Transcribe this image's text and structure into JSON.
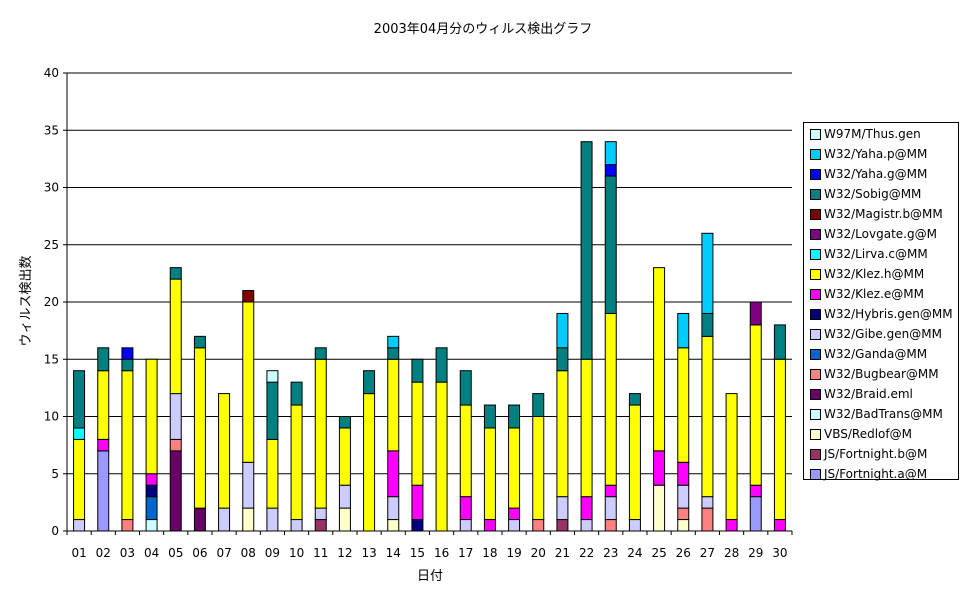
{
  "chart_data": {
    "type": "bar",
    "stacked": true,
    "title": "2003年04月分のウィルス検出グラフ",
    "xlabel": "日付",
    "ylabel": "ウィルス検出数",
    "ylim": [
      0,
      40
    ],
    "yticks": [
      0,
      5,
      10,
      15,
      20,
      25,
      30,
      35,
      40
    ],
    "grid": "horizontal",
    "legend_position": "right",
    "categories": [
      "01",
      "02",
      "03",
      "04",
      "05",
      "06",
      "07",
      "08",
      "09",
      "10",
      "11",
      "12",
      "13",
      "14",
      "15",
      "16",
      "17",
      "18",
      "19",
      "20",
      "21",
      "22",
      "23",
      "24",
      "25",
      "26",
      "27",
      "28",
      "29",
      "30"
    ],
    "series": [
      {
        "name": "JS/Fortnight.a@M",
        "color": "#9999ff",
        "values": [
          0,
          7,
          0,
          0,
          0,
          0,
          0,
          0,
          0,
          0,
          0,
          0,
          0,
          0,
          0,
          0,
          0,
          0,
          0,
          0,
          0,
          0,
          0,
          0,
          0,
          0,
          0,
          0,
          3,
          0
        ]
      },
      {
        "name": "JS/Fortnight.b@M",
        "color": "#993366",
        "values": [
          0,
          0,
          0,
          0,
          0,
          0,
          0,
          0,
          0,
          0,
          1,
          0,
          0,
          0,
          0,
          0,
          0,
          0,
          0,
          0,
          1,
          0,
          0,
          0,
          0,
          0,
          0,
          0,
          0,
          0
        ]
      },
      {
        "name": "VBS/Redlof@M",
        "color": "#ffffcc",
        "values": [
          0,
          0,
          0,
          0,
          0,
          0,
          0,
          2,
          0,
          0,
          0,
          2,
          0,
          1,
          0,
          0,
          0,
          0,
          0,
          0,
          0,
          0,
          0,
          0,
          4,
          1,
          0,
          0,
          0,
          0
        ]
      },
      {
        "name": "W32/BadTrans@MM",
        "color": "#ccffff",
        "values": [
          0,
          0,
          0,
          1,
          0,
          0,
          0,
          0,
          0,
          0,
          0,
          0,
          0,
          0,
          0,
          0,
          0,
          0,
          0,
          0,
          0,
          0,
          0,
          0,
          0,
          0,
          0,
          0,
          0,
          0
        ]
      },
      {
        "name": "W32/Braid.eml",
        "color": "#660066",
        "values": [
          0,
          0,
          0,
          0,
          7,
          2,
          0,
          0,
          0,
          0,
          0,
          0,
          0,
          0,
          0,
          0,
          0,
          0,
          0,
          0,
          0,
          0,
          0,
          0,
          0,
          0,
          0,
          0,
          0,
          0
        ]
      },
      {
        "name": "W32/Bugbear@MM",
        "color": "#ff8080",
        "values": [
          0,
          0,
          1,
          0,
          1,
          0,
          0,
          0,
          0,
          0,
          0,
          0,
          0,
          0,
          0,
          0,
          0,
          0,
          0,
          1,
          0,
          0,
          1,
          0,
          0,
          1,
          2,
          0,
          0,
          0
        ]
      },
      {
        "name": "W32/Ganda@MM",
        "color": "#0066cc",
        "values": [
          0,
          0,
          0,
          2,
          0,
          0,
          0,
          0,
          0,
          0,
          0,
          0,
          0,
          0,
          0,
          0,
          0,
          0,
          0,
          0,
          0,
          0,
          0,
          0,
          0,
          0,
          0,
          0,
          0,
          0
        ]
      },
      {
        "name": "W32/Gibe.gen@MM",
        "color": "#ccccff",
        "values": [
          1,
          0,
          0,
          0,
          4,
          0,
          2,
          4,
          2,
          1,
          1,
          2,
          0,
          2,
          0,
          0,
          1,
          0,
          1,
          0,
          2,
          1,
          2,
          1,
          0,
          2,
          1,
          0,
          0,
          0
        ]
      },
      {
        "name": "W32/Hybris.gen@MM",
        "color": "#000080",
        "values": [
          0,
          0,
          0,
          1,
          0,
          0,
          0,
          0,
          0,
          0,
          0,
          0,
          0,
          0,
          1,
          0,
          0,
          0,
          0,
          0,
          0,
          0,
          0,
          0,
          0,
          0,
          0,
          0,
          0,
          0
        ]
      },
      {
        "name": "W32/Klez.e@MM",
        "color": "#ff00ff",
        "values": [
          0,
          1,
          0,
          1,
          0,
          0,
          0,
          0,
          0,
          0,
          0,
          0,
          0,
          4,
          3,
          0,
          2,
          1,
          1,
          0,
          0,
          2,
          1,
          0,
          3,
          2,
          0,
          1,
          1,
          1
        ]
      },
      {
        "name": "W32/Klez.h@MM",
        "color": "#ffff00",
        "values": [
          7,
          6,
          13,
          10,
          10,
          14,
          10,
          14,
          6,
          10,
          13,
          5,
          12,
          8,
          9,
          13,
          8,
          8,
          7,
          9,
          11,
          12,
          15,
          10,
          16,
          10,
          14,
          11,
          14,
          14
        ]
      },
      {
        "name": "W32/Lirva.c@MM",
        "color": "#00ffff",
        "values": [
          1,
          0,
          0,
          0,
          0,
          0,
          0,
          0,
          0,
          0,
          0,
          0,
          0,
          0,
          0,
          0,
          0,
          0,
          0,
          0,
          0,
          0,
          0,
          0,
          0,
          0,
          0,
          0,
          0,
          0
        ]
      },
      {
        "name": "W32/Lovgate.g@M",
        "color": "#800080",
        "values": [
          0,
          0,
          0,
          0,
          0,
          0,
          0,
          0,
          0,
          0,
          0,
          0,
          0,
          0,
          0,
          0,
          0,
          0,
          0,
          0,
          0,
          0,
          0,
          0,
          0,
          0,
          0,
          0,
          2,
          0
        ]
      },
      {
        "name": "W32/Magistr.b@MM",
        "color": "#800000",
        "values": [
          0,
          0,
          0,
          0,
          0,
          0,
          0,
          1,
          0,
          0,
          0,
          0,
          0,
          0,
          0,
          0,
          0,
          0,
          0,
          0,
          0,
          0,
          0,
          0,
          0,
          0,
          0,
          0,
          0,
          0
        ]
      },
      {
        "name": "W32/Sobig@MM",
        "color": "#008080",
        "values": [
          5,
          2,
          1,
          0,
          1,
          1,
          0,
          0,
          5,
          2,
          1,
          1,
          2,
          1,
          2,
          3,
          3,
          2,
          2,
          2,
          2,
          19,
          12,
          1,
          0,
          0,
          2,
          0,
          0,
          3
        ]
      },
      {
        "name": "W32/Yaha.g@MM",
        "color": "#0000ff",
        "values": [
          0,
          0,
          1,
          0,
          0,
          0,
          0,
          0,
          0,
          0,
          0,
          0,
          0,
          0,
          0,
          0,
          0,
          0,
          0,
          0,
          0,
          0,
          1,
          0,
          0,
          0,
          0,
          0,
          0,
          0
        ]
      },
      {
        "name": "W32/Yaha.p@MM",
        "color": "#00ccff",
        "values": [
          0,
          0,
          0,
          0,
          0,
          0,
          0,
          0,
          0,
          0,
          0,
          0,
          0,
          1,
          0,
          0,
          0,
          0,
          0,
          0,
          3,
          0,
          2,
          0,
          0,
          3,
          7,
          0,
          0,
          0
        ]
      },
      {
        "name": "W97M/Thus.gen",
        "color": "#ccffff",
        "values": [
          0,
          0,
          0,
          0,
          0,
          0,
          0,
          0,
          1,
          0,
          0,
          0,
          0,
          0,
          0,
          0,
          0,
          0,
          0,
          0,
          0,
          0,
          0,
          0,
          0,
          0,
          0,
          0,
          0,
          0
        ]
      }
    ]
  }
}
